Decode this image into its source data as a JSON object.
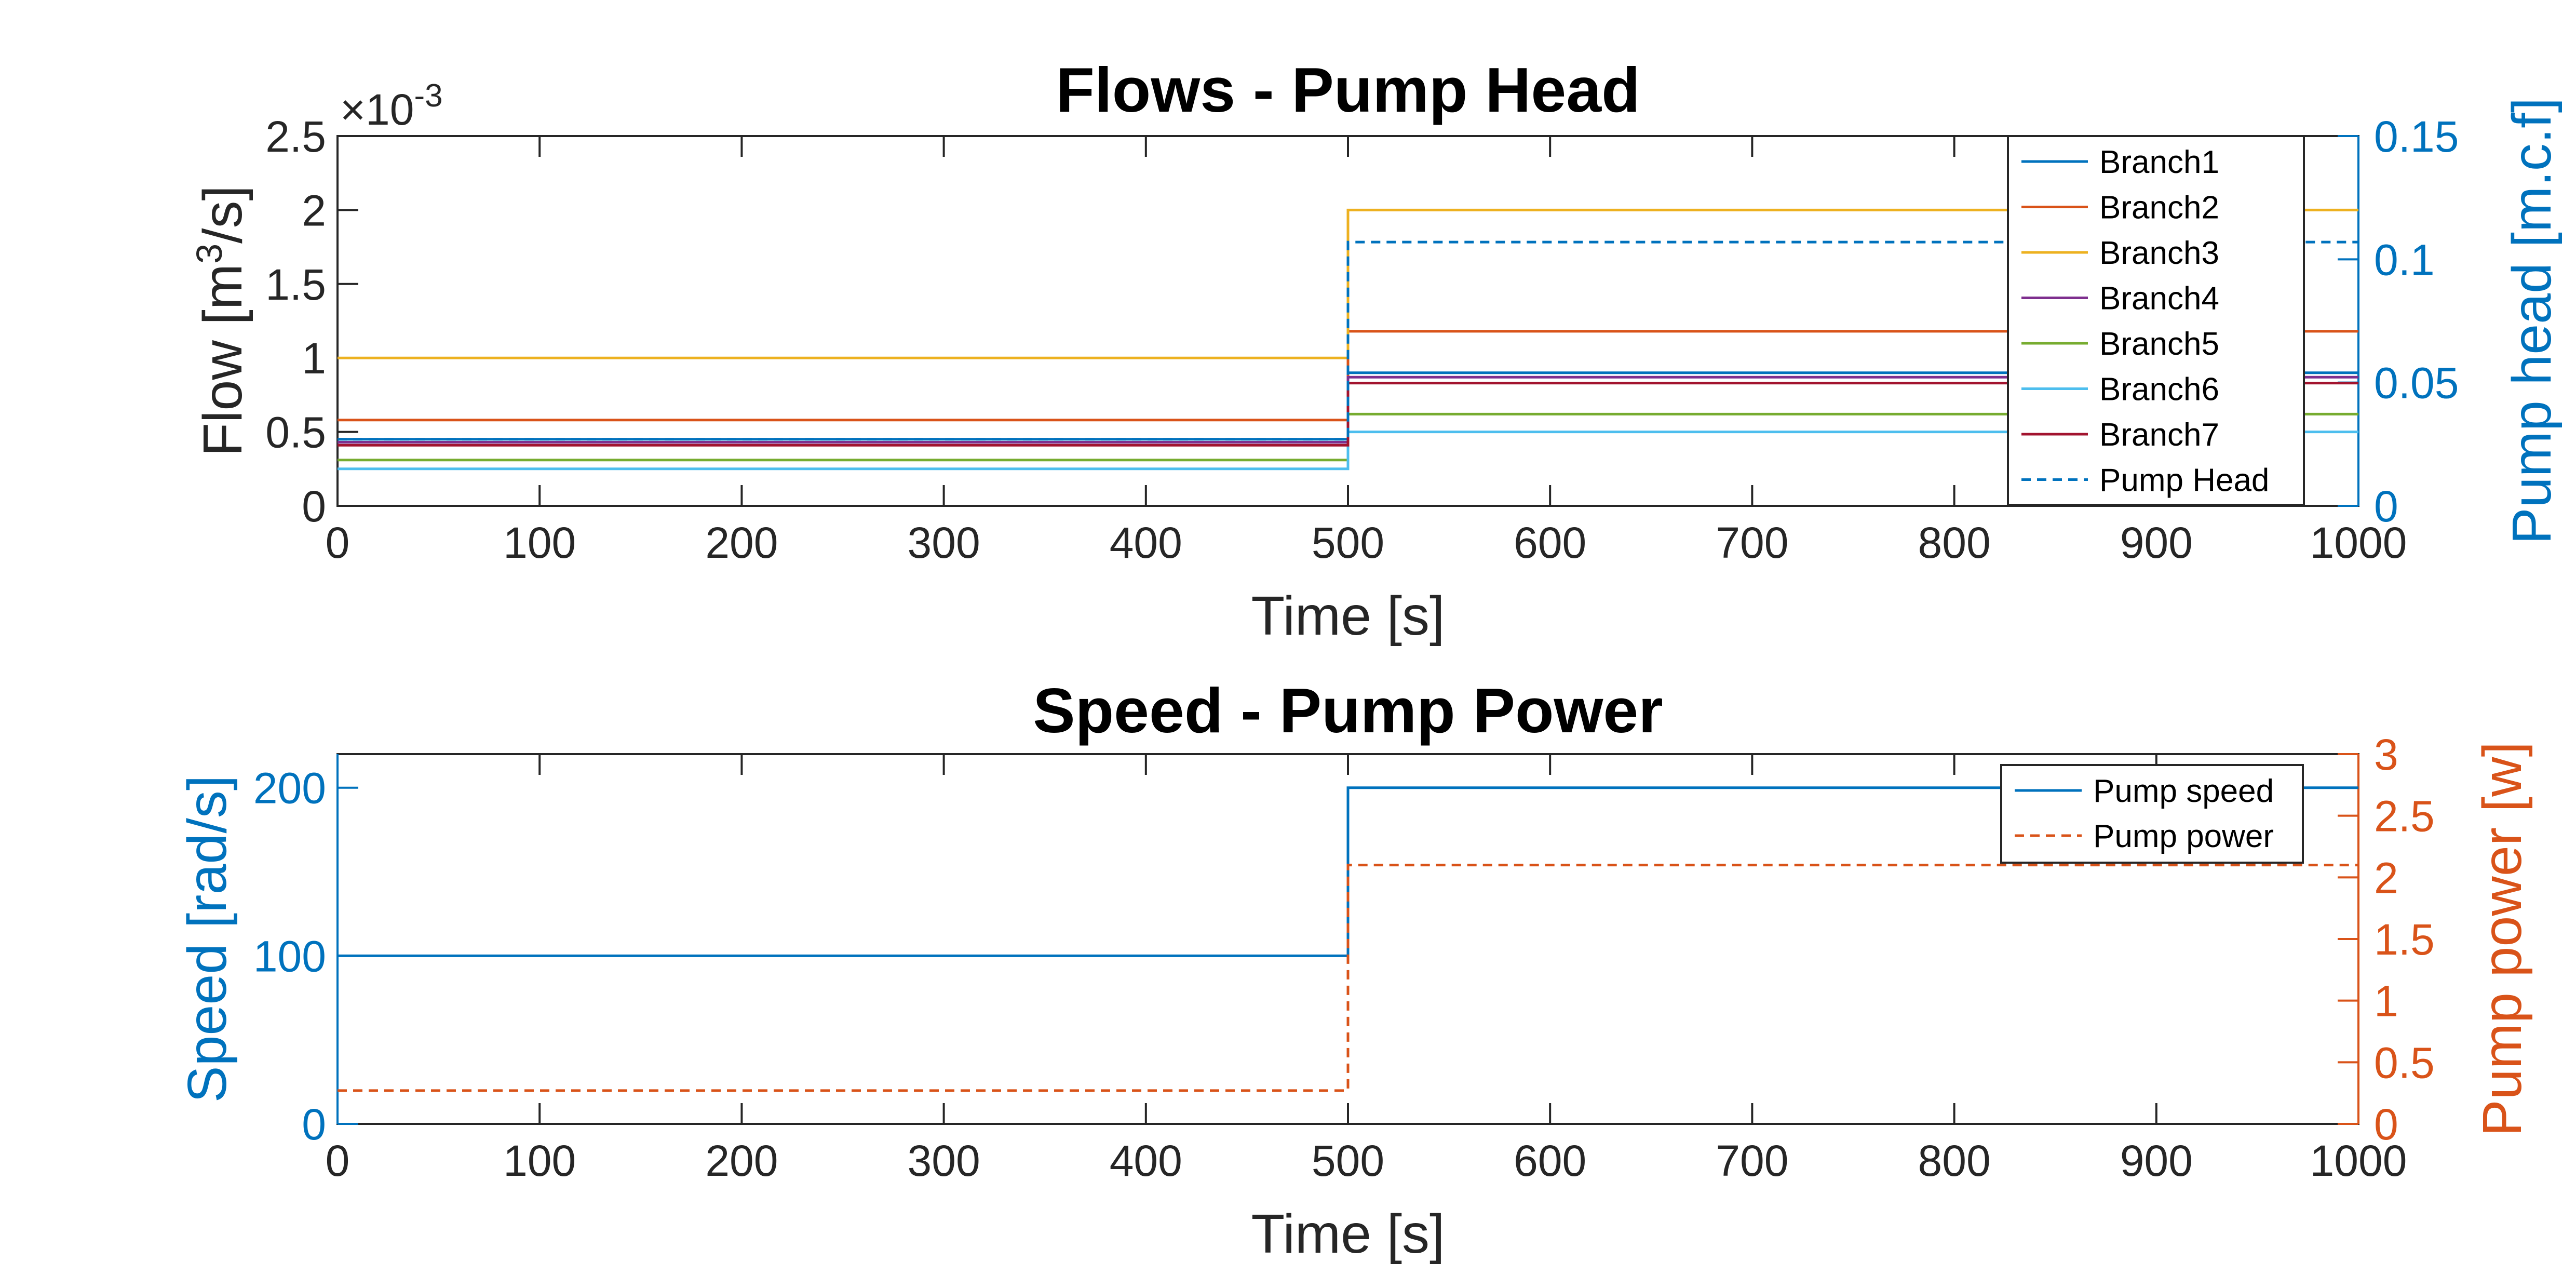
{
  "chart_data": [
    {
      "type": "line",
      "title": "Flows - Pump Head",
      "xlabel": "Time [s]",
      "ylabel_prefix": "Flow [m",
      "ylabel_sup": "3",
      "ylabel_suffix": "/s]",
      "y2label": "Pump head [m.c.f]",
      "exponent_base": "×10",
      "exponent_power": "-3",
      "xlim": [
        0,
        1000
      ],
      "ylim": [
        0,
        0.0025
      ],
      "y2lim": [
        0,
        0.15
      ],
      "xticks": [
        "0",
        "100",
        "200",
        "300",
        "400",
        "500",
        "600",
        "700",
        "800",
        "900",
        "1000"
      ],
      "yticks": [
        "0",
        "0.5",
        "1",
        "1.5",
        "2",
        "2.5"
      ],
      "y2ticks": [
        "0",
        "0.05",
        "0.1",
        "0.15"
      ],
      "legend_position": "top-right",
      "x": [
        0,
        500,
        500,
        1000
      ],
      "series": [
        {
          "name": "Branch1",
          "color": "#0072BD",
          "dash": "solid",
          "axis": "left",
          "values": [
            0.00045,
            0.00045,
            0.0009,
            0.0009
          ]
        },
        {
          "name": "Branch2",
          "color": "#D95319",
          "dash": "solid",
          "axis": "left",
          "values": [
            0.00058,
            0.00058,
            0.00118,
            0.00118
          ]
        },
        {
          "name": "Branch3",
          "color": "#EDB120",
          "dash": "solid",
          "axis": "left",
          "values": [
            0.001,
            0.001,
            0.002,
            0.002
          ]
        },
        {
          "name": "Branch4",
          "color": "#7E2F8E",
          "dash": "solid",
          "axis": "left",
          "values": [
            0.00043,
            0.00043,
            0.00087,
            0.00087
          ]
        },
        {
          "name": "Branch5",
          "color": "#77AC30",
          "dash": "solid",
          "axis": "left",
          "values": [
            0.00031,
            0.00031,
            0.00062,
            0.00062
          ]
        },
        {
          "name": "Branch6",
          "color": "#4DBEEE",
          "dash": "solid",
          "axis": "left",
          "values": [
            0.00025,
            0.00025,
            0.0005,
            0.0005
          ]
        },
        {
          "name": "Branch7",
          "color": "#A2142F",
          "dash": "solid",
          "axis": "left",
          "values": [
            0.00041,
            0.00041,
            0.00083,
            0.00083
          ]
        },
        {
          "name": "Pump Head",
          "color": "#0072BD",
          "dash": "dashed",
          "axis": "right",
          "values": [
            0.027,
            0.027,
            0.107,
            0.107
          ]
        }
      ]
    },
    {
      "type": "line",
      "title": "Speed - Pump Power",
      "xlabel": "Time [s]",
      "ylabel": "Speed [rad/s]",
      "y2label": "Pump power [w]",
      "xlim": [
        0,
        1000
      ],
      "ylim": [
        0,
        220
      ],
      "y2lim": [
        0,
        3
      ],
      "xticks": [
        "0",
        "100",
        "200",
        "300",
        "400",
        "500",
        "600",
        "700",
        "800",
        "900",
        "1000"
      ],
      "yticks": [
        "0",
        "100",
        "200"
      ],
      "y2ticks": [
        "0",
        "0.5",
        "1",
        "1.5",
        "2",
        "2.5",
        "3"
      ],
      "legend_position": "top-right",
      "left_axis_color": "#0072BD",
      "right_axis_color": "#D95319",
      "x": [
        0,
        500,
        500,
        1000
      ],
      "series": [
        {
          "name": "Pump speed",
          "color": "#0072BD",
          "dash": "solid",
          "axis": "left",
          "values": [
            100,
            100,
            200,
            200
          ]
        },
        {
          "name": "Pump power",
          "color": "#D95319",
          "dash": "dashed",
          "axis": "right",
          "values": [
            0.27,
            0.27,
            2.1,
            2.1
          ]
        }
      ]
    }
  ]
}
